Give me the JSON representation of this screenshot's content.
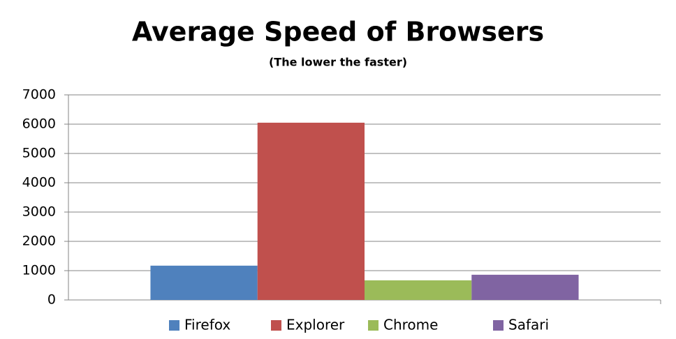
{
  "chart_data": {
    "type": "bar",
    "title": "Average Speed of Browsers",
    "subtitle": "(The lower the faster)",
    "categories": [
      null
    ],
    "series": [
      {
        "name": "Firefox",
        "color": "#4f81bd",
        "values": [
          1170
        ]
      },
      {
        "name": "Explorer",
        "color": "#c0504d",
        "values": [
          6050
        ]
      },
      {
        "name": "Chrome",
        "color": "#9bbb59",
        "values": [
          670
        ]
      },
      {
        "name": "Safari",
        "color": "#8064a2",
        "values": [
          860
        ]
      }
    ],
    "ylim": [
      0,
      7000
    ],
    "yticks": [
      0,
      1000,
      2000,
      3000,
      4000,
      5000,
      6000,
      7000
    ],
    "grid": true,
    "legend": "bottom"
  }
}
